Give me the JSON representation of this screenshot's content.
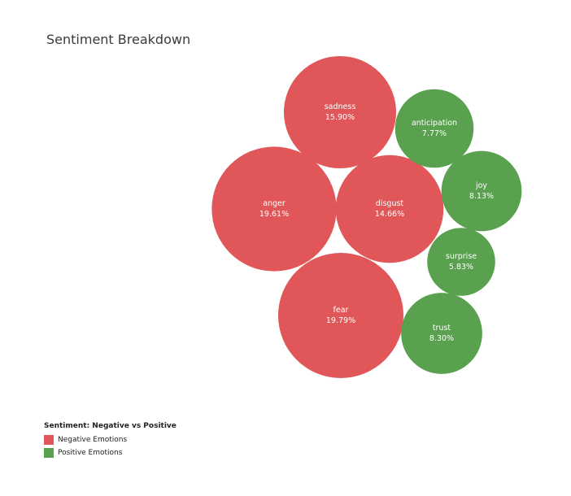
{
  "title": "Sentiment Breakdown",
  "colors": {
    "negative": "#e15759",
    "positive": "#59a14f"
  },
  "legend": {
    "title": "Sentiment: Negative vs Positive",
    "items": [
      {
        "label": "Negative Emotions",
        "group": "negative"
      },
      {
        "label": "Positive Emotions",
        "group": "positive"
      }
    ]
  },
  "chart_data": {
    "type": "bubble",
    "title": "Sentiment Breakdown",
    "legend_placement": "bottom-left",
    "series": [
      {
        "name": "Negative Emotions",
        "group": "negative",
        "values": [
          {
            "label": "sadness",
            "value": 15.9,
            "text": "15.90%"
          },
          {
            "label": "anger",
            "value": 19.61,
            "text": "19.61%"
          },
          {
            "label": "disgust",
            "value": 14.66,
            "text": "14.66%"
          },
          {
            "label": "fear",
            "value": 19.79,
            "text": "19.79%"
          }
        ]
      },
      {
        "name": "Positive Emotions",
        "group": "positive",
        "values": [
          {
            "label": "anticipation",
            "value": 7.77,
            "text": "7.77%"
          },
          {
            "label": "joy",
            "value": 8.13,
            "text": "8.13%"
          },
          {
            "label": "surprise",
            "value": 5.83,
            "text": "5.83%"
          },
          {
            "label": "trust",
            "value": 8.3,
            "text": "8.30%"
          }
        ]
      }
    ]
  }
}
